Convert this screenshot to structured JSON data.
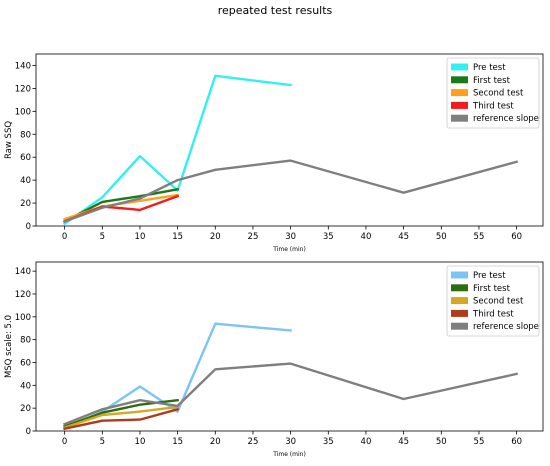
{
  "figure": {
    "title": "repeated test results"
  },
  "chart_data": [
    {
      "type": "line",
      "ylabel": "Raw SSQ",
      "xlabel": "Time (min)",
      "xlim": [
        -3.8,
        63.5
      ],
      "ylim": [
        0,
        150
      ],
      "xticks": [
        0,
        5,
        10,
        15,
        20,
        25,
        30,
        35,
        40,
        45,
        50,
        55,
        60
      ],
      "yticks": [
        0,
        20,
        40,
        60,
        80,
        100,
        120,
        140
      ],
      "legend_position": "top-right",
      "series": [
        {
          "name": "Pre test",
          "color": "#33f0f0",
          "x": [
            0,
            5,
            10,
            15,
            20,
            30
          ],
          "y": [
            2,
            25,
            61,
            31,
            131,
            123
          ]
        },
        {
          "name": "First test",
          "color": "#1a7a1a",
          "x": [
            0,
            5,
            10,
            15
          ],
          "y": [
            4,
            21,
            26,
            32
          ]
        },
        {
          "name": "Second test",
          "color": "#ff9f1c",
          "x": [
            0,
            5,
            10,
            15
          ],
          "y": [
            6,
            17,
            22,
            27
          ]
        },
        {
          "name": "Third test",
          "color": "#f21c1c",
          "x": [
            0,
            5,
            10,
            15
          ],
          "y": [
            4,
            17,
            14,
            26
          ]
        },
        {
          "name": "reference slope",
          "color": "#7f7f7f",
          "x": [
            0,
            5,
            10,
            15,
            20,
            30,
            45,
            60
          ],
          "y": [
            4,
            16,
            24,
            40,
            49,
            57,
            29,
            56
          ]
        }
      ]
    },
    {
      "type": "line",
      "ylabel": "MSQ scale: 5.0",
      "xlabel": "Time (min)",
      "xlim": [
        -3.8,
        63.5
      ],
      "ylim": [
        0,
        148
      ],
      "xticks": [
        0,
        5,
        10,
        15,
        20,
        25,
        30,
        35,
        40,
        45,
        50,
        55,
        60
      ],
      "yticks": [
        0,
        20,
        40,
        60,
        80,
        100,
        120,
        140
      ],
      "legend_position": "top-right",
      "series": [
        {
          "name": "Pre test",
          "color": "#7cc4f4",
          "x": [
            0,
            5,
            10,
            15,
            20,
            30
          ],
          "y": [
            2,
            17,
            39,
            17,
            94,
            88
          ]
        },
        {
          "name": "First test",
          "color": "#2e6e0e",
          "x": [
            0,
            5,
            10,
            15
          ],
          "y": [
            4,
            16,
            23,
            27
          ]
        },
        {
          "name": "Second test",
          "color": "#d4a822",
          "x": [
            0,
            5,
            10,
            15
          ],
          "y": [
            3,
            14,
            17,
            21
          ]
        },
        {
          "name": "Third test",
          "color": "#b03a1a",
          "x": [
            0,
            5,
            10,
            15
          ],
          "y": [
            2,
            9,
            10,
            19
          ]
        },
        {
          "name": "reference slope",
          "color": "#7f7f7f",
          "x": [
            0,
            5,
            10,
            15,
            20,
            30,
            45,
            60
          ],
          "y": [
            6,
            19,
            27,
            22,
            54,
            59,
            28,
            50
          ]
        }
      ]
    }
  ]
}
